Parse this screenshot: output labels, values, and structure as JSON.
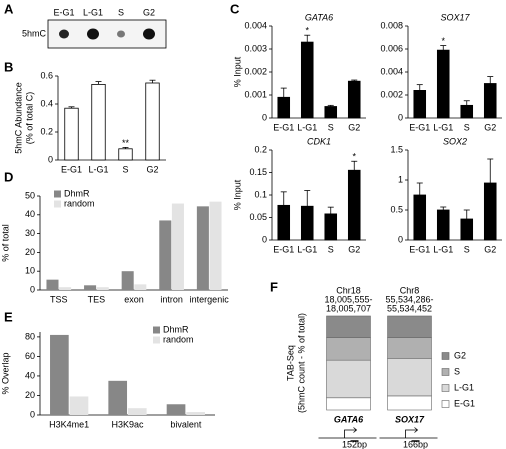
{
  "panel_labels": [
    "A",
    "B",
    "C",
    "D",
    "E",
    "F"
  ],
  "blot": {
    "label": "5hmC",
    "lanes": [
      "E-G1",
      "L-G1",
      "S",
      "G2"
    ]
  },
  "chart_data": [
    {
      "type": "bar",
      "ylabel": [
        "5hmC Abundance",
        "(% of total C)"
      ],
      "categories": [
        "E-G1",
        "L-G1",
        "S",
        "G2"
      ],
      "values": [
        0.37,
        0.54,
        0.08,
        0.55
      ],
      "errors": [
        0.01,
        0.02,
        0.01,
        0.02
      ],
      "annotations": [
        null,
        null,
        "**",
        null
      ],
      "color": "#ffffff",
      "ylim": [
        0,
        0.6
      ],
      "yticks": [
        0,
        0.2,
        0.4,
        0.6
      ]
    },
    {
      "type": "bar",
      "title": "GATA6",
      "ylabel": [
        "% Input"
      ],
      "categories": [
        "E-G1",
        "L-G1",
        "S",
        "G2"
      ],
      "values": [
        0.0009,
        0.0033,
        0.0005,
        0.0016
      ],
      "errors": [
        0.0004,
        0.0003,
        5e-05,
        5e-05
      ],
      "annotations": [
        null,
        "*",
        null,
        null
      ],
      "color": "#000000",
      "ylim": [
        0,
        0.004
      ],
      "yticks": [
        0,
        0.001,
        0.002,
        0.003,
        0.004
      ]
    },
    {
      "type": "bar",
      "title": "SOX17",
      "categories": [
        "E-G1",
        "L-G1",
        "S",
        "G2"
      ],
      "values": [
        0.0024,
        0.0059,
        0.0011,
        0.003
      ],
      "errors": [
        0.0005,
        0.0004,
        0.0004,
        0.0006
      ],
      "annotations": [
        null,
        "*",
        null,
        null
      ],
      "color": "#000000",
      "ylim": [
        0,
        0.008
      ],
      "yticks": [
        0,
        0.002,
        0.004,
        0.006,
        0.008
      ]
    },
    {
      "type": "bar",
      "title": "CDK1",
      "ylabel": [
        "% Input"
      ],
      "categories": [
        "E-G1",
        "L-G1",
        "S",
        "G2"
      ],
      "values": [
        0.077,
        0.075,
        0.058,
        0.155
      ],
      "errors": [
        0.03,
        0.035,
        0.015,
        0.02
      ],
      "annotations": [
        null,
        null,
        null,
        "*"
      ],
      "color": "#000000",
      "ylim": [
        0,
        0.2
      ],
      "yticks": [
        0,
        0.05,
        0.1,
        0.15,
        0.2
      ]
    },
    {
      "type": "bar",
      "title": "SOX2",
      "categories": [
        "E-G1",
        "L-G1",
        "S",
        "G2"
      ],
      "values": [
        0.75,
        0.5,
        0.35,
        0.95
      ],
      "errors": [
        0.2,
        0.05,
        0.15,
        0.4
      ],
      "color": "#000000",
      "ylim": [
        0,
        1.5
      ],
      "yticks": [
        0,
        0.5,
        1,
        1.5
      ]
    },
    {
      "type": "bar",
      "ylabel": [
        "% of total"
      ],
      "categories": [
        "TSS",
        "TES",
        "exon",
        "intron",
        "intergenic"
      ],
      "series": [
        {
          "name": "DhmR",
          "color": "#878787",
          "values": [
            5.5,
            2.5,
            10,
            37,
            44.5
          ]
        },
        {
          "name": "random",
          "color": "#e3e3e3",
          "values": [
            1.5,
            1.5,
            3,
            46,
            47
          ]
        }
      ],
      "legend": "upper left",
      "ylim": [
        0,
        50
      ],
      "yticks": [
        0,
        10,
        20,
        30,
        40,
        50
      ]
    },
    {
      "type": "bar",
      "ylabel": [
        "% Overlap"
      ],
      "categories": [
        "H3K4me1",
        "H3K9ac",
        "bivalent"
      ],
      "series": [
        {
          "name": "DhmR",
          "color": "#878787",
          "values": [
            82,
            35,
            11
          ]
        },
        {
          "name": "random",
          "color": "#e3e3e3",
          "values": [
            19,
            7,
            3
          ]
        }
      ],
      "legend": "upper right",
      "ylim": [
        0,
        85
      ],
      "yticks": [
        0,
        20,
        40,
        60,
        80
      ]
    },
    {
      "type": "stacked_bar",
      "ylabel": [
        "TAB-Seq",
        "(5hmC count - % of total)"
      ],
      "categories": [
        "GATA6",
        "SOX17"
      ],
      "annotations": [
        [
          "Chr18",
          "18,005,555-",
          "18,005,707"
        ],
        [
          "Chr8",
          "55,534,286-",
          "55,534,452"
        ]
      ],
      "features": [
        "152bp",
        "166bp"
      ],
      "series": [
        {
          "name": "E-G1",
          "color": "#ffffff",
          "values": [
            13,
            15
          ]
        },
        {
          "name": "L-G1",
          "color": "#d9d9d9",
          "values": [
            40,
            40
          ]
        },
        {
          "name": "S",
          "color": "#b0b0b0",
          "values": [
            24,
            22
          ]
        },
        {
          "name": "G2",
          "color": "#8a8a8a",
          "values": [
            23,
            23
          ]
        }
      ],
      "legend": "right",
      "ylim": [
        0,
        100
      ]
    }
  ]
}
